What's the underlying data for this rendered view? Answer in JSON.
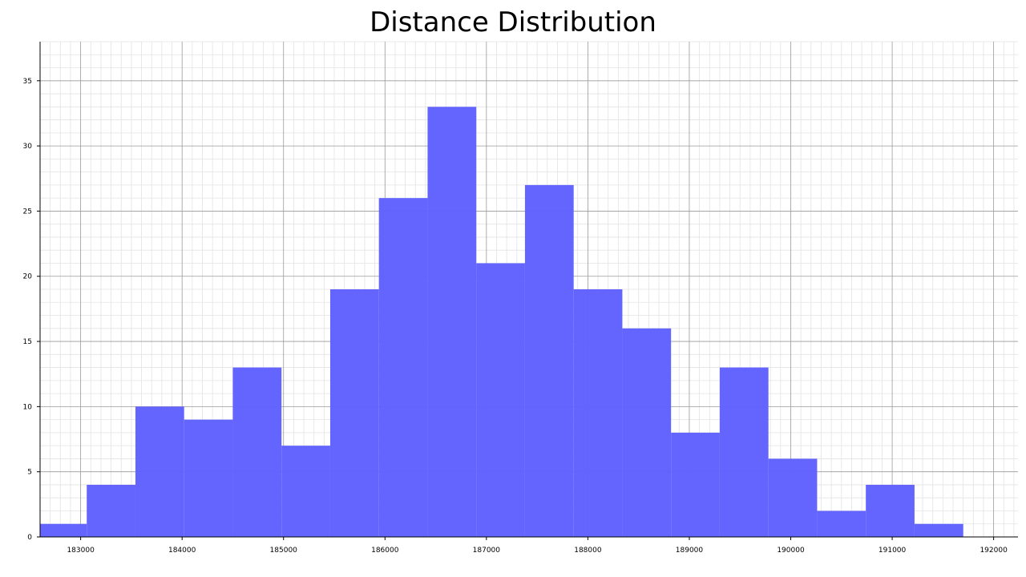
{
  "chart_data": {
    "type": "bar",
    "title": "Distance Distribution",
    "xlabel": "",
    "ylabel": "",
    "xlim": [
      182600,
      192240
    ],
    "ylim": [
      0,
      38
    ],
    "bin_width": 480,
    "bins": [
      {
        "start": 182580,
        "end": 183060,
        "count": 1
      },
      {
        "start": 183060,
        "end": 183540,
        "count": 4
      },
      {
        "start": 183540,
        "end": 184020,
        "count": 10
      },
      {
        "start": 184020,
        "end": 184500,
        "count": 9
      },
      {
        "start": 184500,
        "end": 184980,
        "count": 13
      },
      {
        "start": 184980,
        "end": 185460,
        "count": 7
      },
      {
        "start": 185460,
        "end": 185940,
        "count": 19
      },
      {
        "start": 185940,
        "end": 186420,
        "count": 26
      },
      {
        "start": 186420,
        "end": 186900,
        "count": 33
      },
      {
        "start": 186900,
        "end": 187380,
        "count": 21
      },
      {
        "start": 187380,
        "end": 187860,
        "count": 27
      },
      {
        "start": 187860,
        "end": 188340,
        "count": 19
      },
      {
        "start": 188340,
        "end": 188820,
        "count": 16
      },
      {
        "start": 188820,
        "end": 189300,
        "count": 8
      },
      {
        "start": 189300,
        "end": 189780,
        "count": 13
      },
      {
        "start": 189780,
        "end": 190260,
        "count": 6
      },
      {
        "start": 190260,
        "end": 190740,
        "count": 2
      },
      {
        "start": 190740,
        "end": 191220,
        "count": 4
      },
      {
        "start": 191220,
        "end": 191700,
        "count": 1
      }
    ],
    "x_ticks": [
      "183000",
      "184000",
      "185000",
      "186000",
      "187000",
      "188000",
      "189000",
      "190000",
      "191000",
      "192000"
    ],
    "y_ticks": [
      "0",
      "5",
      "10",
      "15",
      "20",
      "25",
      "30",
      "35"
    ],
    "grid": true,
    "bar_color": "#6161ff"
  }
}
